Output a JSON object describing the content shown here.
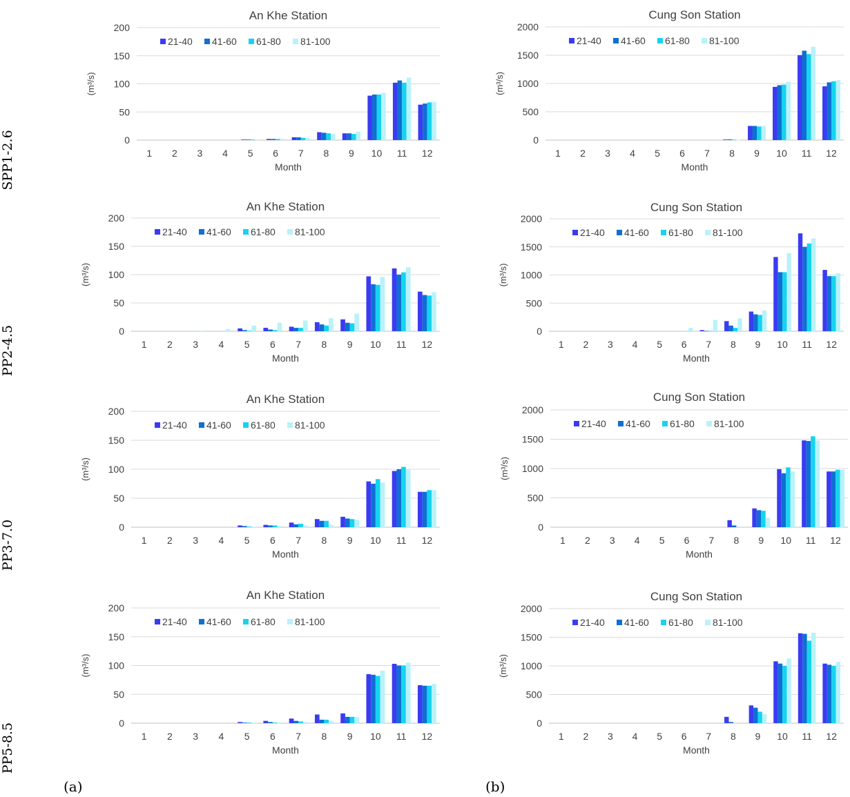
{
  "figure": {
    "row_labels": [
      "SPP1-2.6",
      "PP2-4.5",
      "PP3-7.0",
      "PP5-8.5"
    ],
    "panel_labels": [
      "(a)",
      "(b)"
    ],
    "colors": [
      "#3b3bf2",
      "#0f6fd2",
      "#16d3f0",
      "#b9f2f9"
    ]
  },
  "chart_data": [
    {
      "type": "bar",
      "title": "An Khe Station",
      "xlabel": "Month",
      "ylabel": "(m³/s)",
      "ylim": [
        0,
        200
      ],
      "yticks": [
        0,
        50,
        100,
        150,
        200
      ],
      "grid": true,
      "legend": "top-left",
      "categories": [
        "1",
        "2",
        "3",
        "4",
        "5",
        "6",
        "7",
        "8",
        "9",
        "10",
        "11",
        "12"
      ],
      "series": [
        {
          "name": "21-40",
          "values": [
            0,
            0,
            0,
            0,
            1,
            2,
            5,
            14,
            12,
            79,
            102,
            63
          ]
        },
        {
          "name": "41-60",
          "values": [
            0,
            0,
            0,
            0,
            1,
            2,
            5,
            13,
            12,
            81,
            106,
            65
          ]
        },
        {
          "name": "61-80",
          "values": [
            0,
            0,
            0,
            0,
            1,
            2,
            4,
            12,
            11,
            81,
            102,
            67
          ]
        },
        {
          "name": "81-100",
          "values": [
            0,
            0,
            0,
            0,
            1,
            2,
            4,
            11,
            15,
            84,
            111,
            68
          ]
        }
      ]
    },
    {
      "type": "bar",
      "title": "Cung Son Station",
      "xlabel": "Month",
      "ylabel": "(m³/s)",
      "ylim": [
        0,
        2000
      ],
      "yticks": [
        0,
        500,
        1000,
        1500,
        2000
      ],
      "grid": true,
      "legend": "top-left",
      "categories": [
        "1",
        "2",
        "3",
        "4",
        "5",
        "6",
        "7",
        "8",
        "9",
        "10",
        "11",
        "12"
      ],
      "series": [
        {
          "name": "21-40",
          "values": [
            0,
            0,
            0,
            0,
            0,
            0,
            0,
            10,
            250,
            940,
            1500,
            950
          ]
        },
        {
          "name": "41-60",
          "values": [
            0,
            0,
            0,
            0,
            0,
            0,
            0,
            12,
            250,
            970,
            1580,
            1020
          ]
        },
        {
          "name": "61-80",
          "values": [
            0,
            0,
            0,
            0,
            0,
            0,
            0,
            8,
            240,
            980,
            1520,
            1040
          ]
        },
        {
          "name": "81-100",
          "values": [
            0,
            0,
            0,
            0,
            0,
            0,
            0,
            5,
            250,
            1030,
            1650,
            1060
          ]
        }
      ]
    },
    {
      "type": "bar",
      "title": "An Khe Station",
      "xlabel": "Month",
      "ylabel": "(m³/s)",
      "ylim": [
        0,
        200
      ],
      "yticks": [
        0,
        50,
        100,
        150,
        200
      ],
      "grid": true,
      "legend": "top-left",
      "categories": [
        "1",
        "2",
        "3",
        "4",
        "5",
        "6",
        "7",
        "8",
        "9",
        "10",
        "11",
        "12"
      ],
      "series": [
        {
          "name": "21-40",
          "values": [
            0,
            0,
            0,
            0,
            5,
            6,
            8,
            16,
            21,
            97,
            111,
            70
          ]
        },
        {
          "name": "41-60",
          "values": [
            0,
            0,
            0,
            0,
            2,
            3,
            6,
            12,
            15,
            83,
            100,
            64
          ]
        },
        {
          "name": "61-80",
          "values": [
            0,
            0,
            0,
            0,
            1,
            2,
            6,
            10,
            14,
            82,
            104,
            63
          ]
        },
        {
          "name": "81-100",
          "values": [
            0,
            0,
            1,
            4,
            10,
            15,
            19,
            23,
            31,
            96,
            113,
            69
          ]
        }
      ]
    },
    {
      "type": "bar",
      "title": "Cung Son Station",
      "xlabel": "Month",
      "ylabel": "(m³/s)",
      "ylim": [
        0,
        2000
      ],
      "yticks": [
        0,
        500,
        1000,
        1500,
        2000
      ],
      "grid": true,
      "legend": "top-left",
      "categories": [
        "1",
        "2",
        "3",
        "4",
        "5",
        "6",
        "7",
        "8",
        "9",
        "10",
        "11",
        "12"
      ],
      "series": [
        {
          "name": "21-40",
          "values": [
            0,
            0,
            0,
            0,
            0,
            0,
            20,
            180,
            350,
            1320,
            1740,
            1090
          ]
        },
        {
          "name": "41-60",
          "values": [
            0,
            0,
            0,
            0,
            0,
            0,
            5,
            100,
            300,
            1050,
            1500,
            980
          ]
        },
        {
          "name": "61-80",
          "values": [
            0,
            0,
            0,
            0,
            0,
            0,
            5,
            60,
            290,
            1050,
            1560,
            980
          ]
        },
        {
          "name": "81-100",
          "values": [
            0,
            0,
            0,
            0,
            0,
            60,
            200,
            230,
            370,
            1390,
            1650,
            1030
          ]
        }
      ]
    },
    {
      "type": "bar",
      "title": "An Khe Station",
      "xlabel": "Month",
      "ylabel": "(m³/s)",
      "ylim": [
        0,
        200
      ],
      "yticks": [
        0,
        50,
        100,
        150,
        200
      ],
      "grid": true,
      "legend": "top-left",
      "categories": [
        "1",
        "2",
        "3",
        "4",
        "5",
        "6",
        "7",
        "8",
        "9",
        "10",
        "11",
        "12"
      ],
      "series": [
        {
          "name": "21-40",
          "values": [
            0,
            0,
            0,
            0,
            3,
            4,
            8,
            14,
            18,
            79,
            97,
            61
          ]
        },
        {
          "name": "41-60",
          "values": [
            0,
            0,
            0,
            0,
            2,
            3,
            5,
            11,
            15,
            75,
            100,
            61
          ]
        },
        {
          "name": "61-80",
          "values": [
            0,
            0,
            0,
            0,
            1,
            3,
            6,
            11,
            14,
            83,
            104,
            64
          ]
        },
        {
          "name": "81-100",
          "values": [
            0,
            0,
            0,
            0,
            1,
            2,
            3,
            4,
            13,
            77,
            99,
            64
          ]
        }
      ]
    },
    {
      "type": "bar",
      "title": "Cung Son Station",
      "xlabel": "Month",
      "ylabel": "(m³/s)",
      "ylim": [
        0,
        2000
      ],
      "yticks": [
        0,
        500,
        1000,
        1500,
        2000
      ],
      "grid": true,
      "legend": "top-left",
      "categories": [
        "1",
        "2",
        "3",
        "4",
        "5",
        "6",
        "7",
        "8",
        "9",
        "10",
        "11",
        "12"
      ],
      "series": [
        {
          "name": "21-40",
          "values": [
            0,
            0,
            0,
            0,
            0,
            0,
            0,
            120,
            320,
            990,
            1480,
            950
          ]
        },
        {
          "name": "41-60",
          "values": [
            0,
            0,
            0,
            0,
            0,
            0,
            0,
            30,
            290,
            920,
            1470,
            950
          ]
        },
        {
          "name": "61-80",
          "values": [
            0,
            0,
            0,
            0,
            0,
            0,
            0,
            0,
            280,
            1020,
            1550,
            980
          ]
        },
        {
          "name": "81-100",
          "values": [
            0,
            0,
            0,
            0,
            0,
            0,
            0,
            0,
            160,
            950,
            1480,
            980
          ]
        }
      ]
    },
    {
      "type": "bar",
      "title": "An Khe Station",
      "xlabel": "Month",
      "ylabel": "(m³/s)",
      "ylim": [
        0,
        200
      ],
      "yticks": [
        0,
        50,
        100,
        150,
        200
      ],
      "grid": true,
      "legend": "top-left",
      "categories": [
        "1",
        "2",
        "3",
        "4",
        "5",
        "6",
        "7",
        "8",
        "9",
        "10",
        "11",
        "12"
      ],
      "series": [
        {
          "name": "21-40",
          "values": [
            0,
            0,
            0,
            0,
            2,
            4,
            8,
            15,
            17,
            85,
            103,
            66
          ]
        },
        {
          "name": "41-60",
          "values": [
            0,
            0,
            0,
            0,
            1,
            2,
            4,
            6,
            11,
            84,
            100,
            65
          ]
        },
        {
          "name": "61-80",
          "values": [
            0,
            0,
            0,
            0,
            1,
            1,
            3,
            6,
            11,
            82,
            100,
            65
          ]
        },
        {
          "name": "81-100",
          "values": [
            0,
            0,
            0,
            0,
            1,
            1,
            2,
            4,
            11,
            91,
            105,
            68
          ]
        }
      ]
    },
    {
      "type": "bar",
      "title": "Cung Son Station",
      "xlabel": "Month",
      "ylabel": "(m³/s)",
      "ylim": [
        0,
        2000
      ],
      "yticks": [
        0,
        500,
        1000,
        1500,
        2000
      ],
      "grid": true,
      "legend": "top-left",
      "categories": [
        "1",
        "2",
        "3",
        "4",
        "5",
        "6",
        "7",
        "8",
        "9",
        "10",
        "11",
        "12"
      ],
      "series": [
        {
          "name": "21-40",
          "values": [
            0,
            0,
            0,
            0,
            0,
            0,
            0,
            110,
            310,
            1080,
            1570,
            1040
          ]
        },
        {
          "name": "41-60",
          "values": [
            0,
            0,
            0,
            0,
            0,
            0,
            0,
            20,
            270,
            1040,
            1560,
            1020
          ]
        },
        {
          "name": "61-80",
          "values": [
            0,
            0,
            0,
            0,
            0,
            0,
            0,
            0,
            200,
            1000,
            1440,
            1000
          ]
        },
        {
          "name": "81-100",
          "values": [
            0,
            0,
            0,
            0,
            0,
            0,
            0,
            0,
            160,
            1130,
            1580,
            1070
          ]
        }
      ]
    }
  ]
}
